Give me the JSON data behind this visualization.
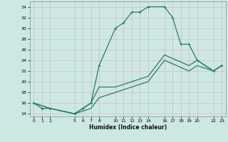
{
  "xlabel": "Humidex (Indice chaleur)",
  "bg_color": "#cde8e4",
  "grid_color": "#b8d8d4",
  "line_color": "#2a7a6e",
  "xlim": [
    -0.5,
    23.5
  ],
  "ylim": [
    13.5,
    35.0
  ],
  "xticks": [
    0,
    1,
    2,
    5,
    6,
    7,
    8,
    10,
    11,
    12,
    13,
    14,
    16,
    17,
    18,
    19,
    20,
    22,
    23
  ],
  "yticks": [
    14,
    16,
    18,
    20,
    22,
    24,
    26,
    28,
    30,
    32,
    34
  ],
  "line1": {
    "x": [
      0,
      1,
      2,
      5,
      6,
      7,
      8,
      10,
      11,
      12,
      13,
      14,
      16,
      17,
      18,
      19,
      20,
      22,
      23
    ],
    "y": [
      16,
      15,
      15,
      14,
      15,
      16,
      23,
      30,
      31,
      33,
      33,
      34,
      34,
      32,
      27,
      27,
      24,
      22,
      23
    ]
  },
  "line2": {
    "x": [
      0,
      2,
      5,
      7,
      8,
      10,
      14,
      16,
      19,
      20,
      22,
      23
    ],
    "y": [
      16,
      15,
      14,
      16,
      19,
      19,
      21,
      25,
      23,
      24,
      22,
      23
    ]
  },
  "line3": {
    "x": [
      0,
      2,
      5,
      7,
      8,
      10,
      14,
      16,
      19,
      20,
      22,
      23
    ],
    "y": [
      16,
      15,
      14,
      15,
      17,
      18,
      20,
      24,
      22,
      23,
      22,
      23
    ]
  }
}
